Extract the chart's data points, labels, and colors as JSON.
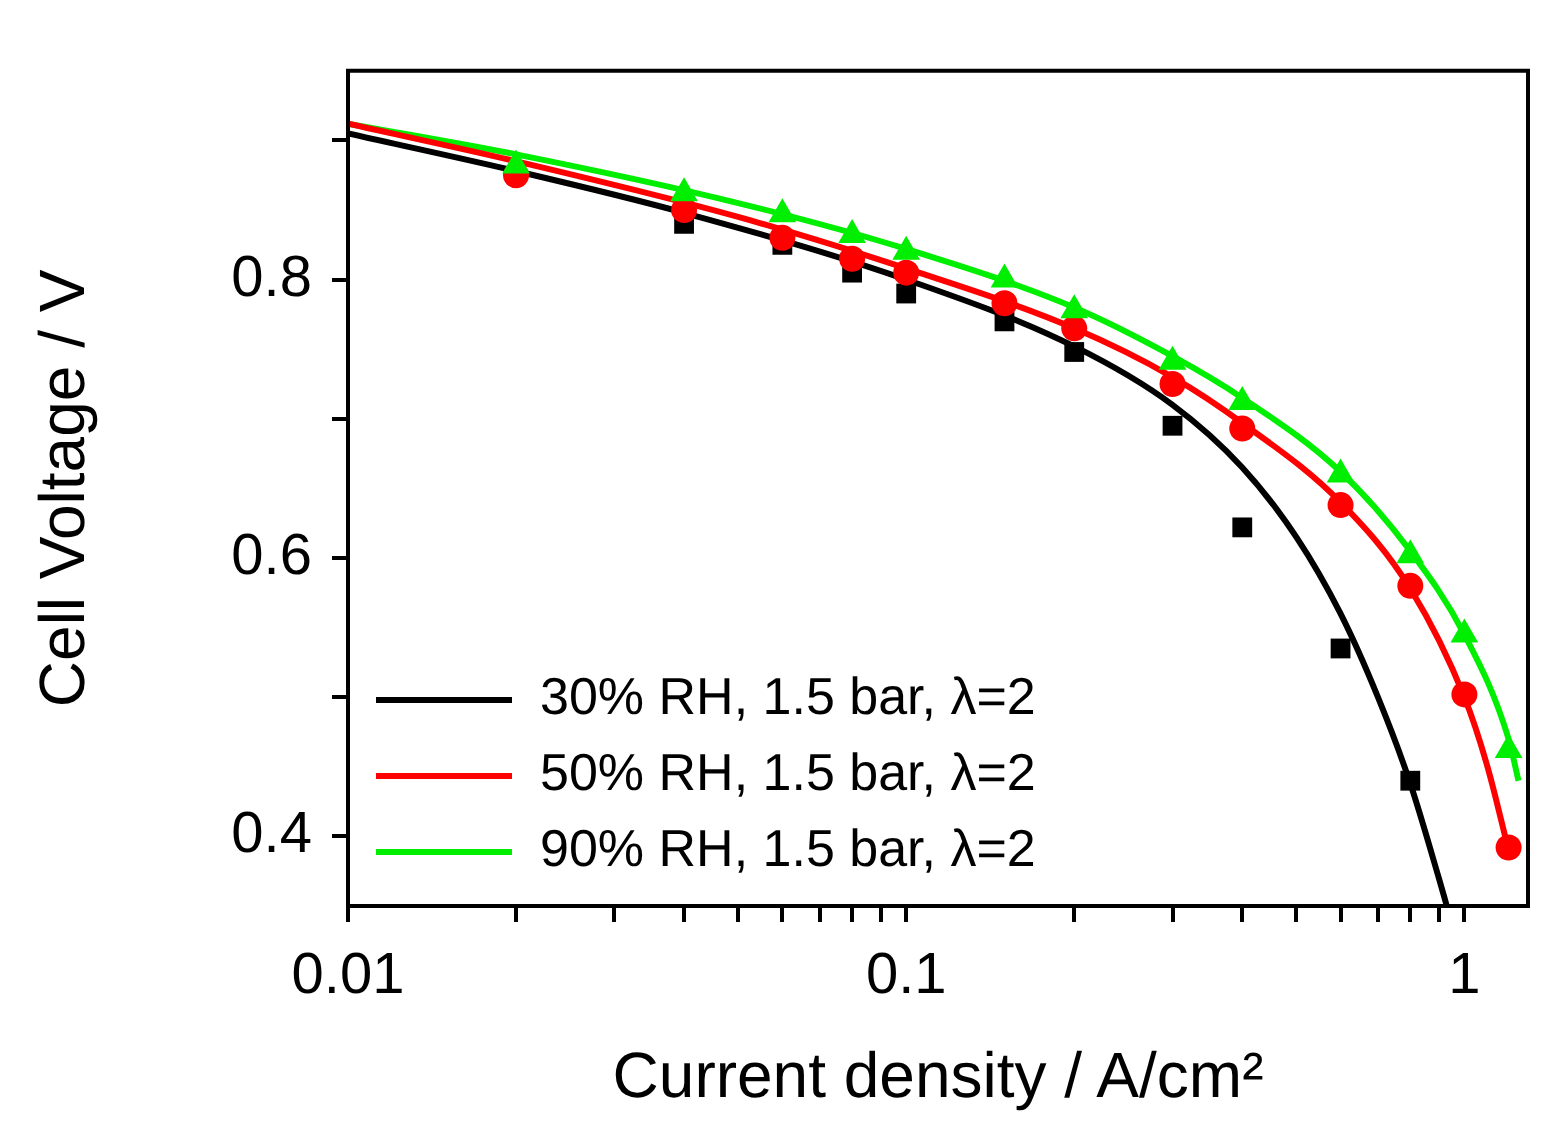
{
  "chart_data": {
    "type": "scatter",
    "xlabel": "Current density / A/cm²",
    "ylabel": "Cell Voltage / V",
    "log": "x",
    "grid": false,
    "legend": "bottom left",
    "line_style": "solid",
    "xlim": [
      0.01,
      1.3
    ],
    "ylim": [
      0.35,
      0.95
    ],
    "xticks": [
      0.01,
      {
        "value": 0.02,
        "label": null
      },
      {
        "value": 0.03,
        "label": null
      },
      {
        "value": 0.04,
        "label": null
      },
      {
        "value": 0.05,
        "label": null
      },
      {
        "value": 0.06,
        "label": null
      },
      {
        "value": 0.07,
        "label": null
      },
      {
        "value": 0.08,
        "label": null
      },
      {
        "value": 0.09,
        "label": null
      },
      0.1,
      {
        "value": 0.2,
        "label": null
      },
      {
        "value": 0.3,
        "label": null
      },
      {
        "value": 0.4,
        "label": null
      },
      {
        "value": 0.5,
        "label": null
      },
      {
        "value": 0.6,
        "label": null
      },
      {
        "value": 0.7,
        "label": null
      },
      {
        "value": 0.8,
        "label": null
      },
      {
        "value": 0.9,
        "label": null
      },
      1
    ],
    "yticks": [
      0.4,
      {
        "value": 0.5,
        "label": null
      },
      0.6,
      {
        "value": 0.7,
        "label": null
      },
      0.8,
      {
        "value": 0.9,
        "label": null
      }
    ],
    "series": [
      {
        "name": "30% RH, 1.5 bar, λ=2",
        "type": "line",
        "marker": "none",
        "color": "#000000",
        "x": [
          0.01,
          0.02,
          0.04,
          0.1,
          0.2,
          0.3,
          0.4,
          0.5,
          0.6,
          0.7,
          0.8,
          0.9,
          0.93
        ],
        "values": [
          0.905,
          0.878,
          0.848,
          0.8,
          0.752,
          0.71,
          0.665,
          0.615,
          0.56,
          0.5,
          0.438,
          0.37,
          0.35
        ]
      },
      {
        "name": "50% RH, 1.5 bar, λ=2",
        "type": "line",
        "marker": "none",
        "color": "#ff0000",
        "x": [
          0.01,
          0.02,
          0.05,
          0.1,
          0.2,
          0.3,
          0.4,
          0.6,
          0.8,
          1.0,
          1.1,
          1.2
        ],
        "values": [
          0.912,
          0.885,
          0.845,
          0.808,
          0.765,
          0.73,
          0.697,
          0.64,
          0.578,
          0.5,
          0.45,
          0.39
        ]
      },
      {
        "name": "90% RH, 1.5 bar, λ=2",
        "type": "line",
        "marker": "none",
        "color": "#00ee00",
        "x": [
          0.01,
          0.02,
          0.05,
          0.1,
          0.2,
          0.3,
          0.4,
          0.6,
          0.8,
          1.0,
          1.2,
          1.25
        ],
        "values": [
          0.912,
          0.89,
          0.855,
          0.822,
          0.78,
          0.745,
          0.715,
          0.662,
          0.605,
          0.545,
          0.47,
          0.44
        ]
      },
      {
        "type": "scatter",
        "marker": "square",
        "color": "#000000",
        "x": [
          0.04,
          0.06,
          0.08,
          0.1,
          0.15,
          0.2,
          0.3,
          0.4,
          0.6,
          0.8
        ],
        "values": [
          0.84,
          0.825,
          0.805,
          0.79,
          0.77,
          0.748,
          0.695,
          0.622,
          0.535,
          0.44
        ]
      },
      {
        "type": "scatter",
        "marker": "circle",
        "color": "#ff0000",
        "x": [
          0.02,
          0.04,
          0.06,
          0.08,
          0.1,
          0.15,
          0.2,
          0.3,
          0.4,
          0.6,
          0.8,
          1.0,
          1.2
        ],
        "values": [
          0.875,
          0.85,
          0.83,
          0.815,
          0.805,
          0.783,
          0.765,
          0.725,
          0.693,
          0.638,
          0.58,
          0.502,
          0.392
        ]
      },
      {
        "type": "scatter",
        "marker": "triangle",
        "color": "#00ee00",
        "x": [
          0.02,
          0.04,
          0.06,
          0.08,
          0.1,
          0.15,
          0.2,
          0.3,
          0.4,
          0.6,
          0.8,
          1.0,
          1.2
        ],
        "values": [
          0.882,
          0.862,
          0.847,
          0.832,
          0.82,
          0.8,
          0.778,
          0.741,
          0.712,
          0.66,
          0.602,
          0.545,
          0.462
        ]
      }
    ]
  }
}
